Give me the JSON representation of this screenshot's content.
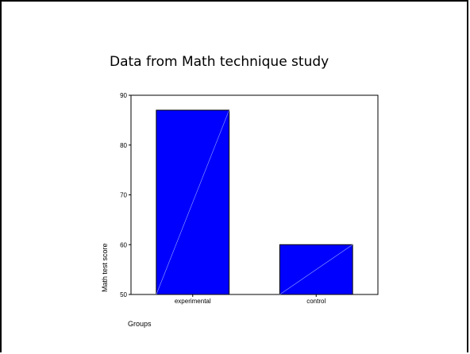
{
  "slide": {
    "title": "Data from Math technique study"
  },
  "chart_data": {
    "type": "bar",
    "title": "",
    "categories": [
      "experimental",
      "control"
    ],
    "values": [
      87,
      60
    ],
    "xlabel": "Groups",
    "ylabel": "Math test score",
    "ylim": [
      50,
      90
    ],
    "yticks": [
      50,
      60,
      70,
      80,
      90
    ],
    "grid": false,
    "legend": "none",
    "bar_color": "#0000ff",
    "diagonal_line_color": "#9aa6ff"
  }
}
